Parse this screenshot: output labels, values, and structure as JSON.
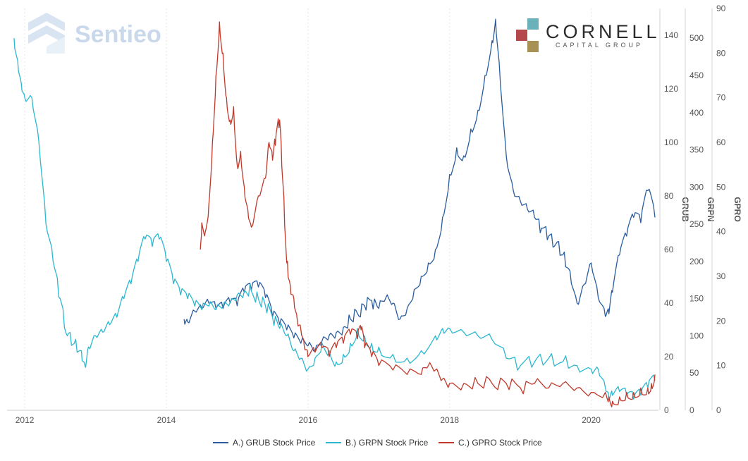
{
  "chart_data": {
    "type": "line",
    "watermark": "Sentieo",
    "brand": {
      "name": "CORNELL",
      "subtitle": "CAPITAL GROUP",
      "colors": [
        "#6ab1ba",
        "#b5484c",
        "#a89253"
      ]
    },
    "x_axis": {
      "range": [
        2011.75,
        2020.95
      ],
      "ticks": [
        "2012",
        "2014",
        "2016",
        "2018",
        "2020"
      ]
    },
    "axes": [
      {
        "id": "GRUB",
        "title": "GRUB",
        "range": [
          0,
          150
        ],
        "ticks": [
          "0",
          "20",
          "40",
          "60",
          "80",
          "100",
          "120",
          "140"
        ]
      },
      {
        "id": "GRPN",
        "title": "GRPN",
        "range": [
          0,
          540
        ],
        "ticks": [
          "0",
          "50",
          "100",
          "150",
          "200",
          "250",
          "300",
          "350",
          "400",
          "450",
          "500"
        ]
      },
      {
        "id": "GPRO",
        "title": "GPRO",
        "range": [
          0,
          90
        ],
        "ticks": [
          "0",
          "10",
          "20",
          "30",
          "40",
          "50",
          "60",
          "70",
          "80",
          "90"
        ]
      }
    ],
    "series": [
      {
        "name": "A.) GRUB Stock Price",
        "axis": "GRUB",
        "color": "#2a5d9f",
        "x": [
          2014.25,
          2014.3,
          2014.4,
          2014.5,
          2014.6,
          2014.7,
          2014.8,
          2014.9,
          2015.0,
          2015.1,
          2015.2,
          2015.3,
          2015.4,
          2015.5,
          2015.6,
          2015.7,
          2015.8,
          2015.9,
          2016.0,
          2016.1,
          2016.2,
          2016.3,
          2016.4,
          2016.5,
          2016.6,
          2016.7,
          2016.8,
          2016.9,
          2017.0,
          2017.1,
          2017.2,
          2017.3,
          2017.4,
          2017.5,
          2017.6,
          2017.7,
          2017.8,
          2017.9,
          2018.0,
          2018.1,
          2018.2,
          2018.3,
          2018.4,
          2018.5,
          2018.6,
          2018.65,
          2018.7,
          2018.8,
          2018.9,
          2019.0,
          2019.1,
          2019.2,
          2019.3,
          2019.4,
          2019.5,
          2019.6,
          2019.7,
          2019.8,
          2019.9,
          2020.0,
          2020.1,
          2020.2,
          2020.25,
          2020.3,
          2020.4,
          2020.5,
          2020.6,
          2020.7,
          2020.8,
          2020.9
        ],
        "values": [
          34,
          33,
          37,
          38,
          40,
          38,
          38,
          40,
          39,
          44,
          45,
          46,
          42,
          35,
          32,
          30,
          27,
          25,
          24,
          22,
          26,
          28,
          29,
          31,
          34,
          36,
          39,
          41,
          38,
          42,
          40,
          34,
          38,
          45,
          50,
          55,
          60,
          72,
          88,
          98,
          95,
          105,
          112,
          125,
          138,
          146,
          130,
          95,
          82,
          78,
          75,
          72,
          68,
          65,
          62,
          58,
          52,
          40,
          47,
          55,
          42,
          35,
          36,
          44,
          58,
          65,
          72,
          70,
          82,
          72
        ]
      },
      {
        "name": "B.) GRPN Stock Price",
        "axis": "GRPN",
        "color": "#2ab8cf",
        "x": [
          2011.85,
          2011.9,
          2011.95,
          2012.0,
          2012.1,
          2012.2,
          2012.3,
          2012.4,
          2012.5,
          2012.6,
          2012.7,
          2012.8,
          2012.85,
          2012.9,
          2013.0,
          2013.1,
          2013.2,
          2013.3,
          2013.4,
          2013.5,
          2013.6,
          2013.7,
          2013.8,
          2013.9,
          2014.0,
          2014.1,
          2014.2,
          2014.3,
          2014.4,
          2014.5,
          2014.6,
          2014.7,
          2014.8,
          2014.9,
          2015.0,
          2015.1,
          2015.2,
          2015.3,
          2015.4,
          2015.5,
          2015.6,
          2015.7,
          2015.8,
          2015.9,
          2016.0,
          2016.1,
          2016.2,
          2016.3,
          2016.4,
          2016.5,
          2016.6,
          2016.7,
          2016.8,
          2016.9,
          2017.0,
          2017.2,
          2017.4,
          2017.6,
          2017.8,
          2017.9,
          2018.0,
          2018.2,
          2018.4,
          2018.6,
          2018.8,
          2019.0,
          2019.2,
          2019.4,
          2019.6,
          2019.8,
          2020.0,
          2020.1,
          2020.2,
          2020.25,
          2020.3,
          2020.4,
          2020.5,
          2020.6,
          2020.7,
          2020.8,
          2020.9
        ],
        "values": [
          500,
          470,
          440,
          420,
          420,
          360,
          250,
          200,
          150,
          100,
          90,
          80,
          60,
          85,
          100,
          105,
          115,
          125,
          150,
          170,
          200,
          230,
          220,
          230,
          200,
          170,
          155,
          150,
          140,
          135,
          140,
          135,
          140,
          145,
          155,
          160,
          160,
          150,
          140,
          125,
          110,
          100,
          80,
          70,
          55,
          70,
          90,
          80,
          65,
          75,
          90,
          110,
          100,
          90,
          85,
          75,
          70,
          80,
          100,
          110,
          110,
          105,
          100,
          95,
          70,
          60,
          65,
          70,
          65,
          60,
          55,
          55,
          30,
          15,
          20,
          25,
          20,
          15,
          20,
          30,
          40
        ]
      },
      {
        "name": "C.) GPRO Stock Price",
        "axis": "GPRO",
        "color": "#c0392b",
        "x": [
          2014.48,
          2014.5,
          2014.55,
          2014.6,
          2014.65,
          2014.7,
          2014.75,
          2014.8,
          2014.85,
          2014.9,
          2014.95,
          2015.0,
          2015.05,
          2015.1,
          2015.15,
          2015.2,
          2015.3,
          2015.4,
          2015.45,
          2015.5,
          2015.55,
          2015.6,
          2015.65,
          2015.7,
          2015.75,
          2015.8,
          2015.85,
          2015.9,
          2015.95,
          2016.0,
          2016.1,
          2016.2,
          2016.3,
          2016.4,
          2016.5,
          2016.6,
          2016.7,
          2016.75,
          2016.8,
          2016.9,
          2017.0,
          2017.2,
          2017.4,
          2017.6,
          2017.7,
          2017.8,
          2017.9,
          2018.0,
          2018.2,
          2018.4,
          2018.6,
          2018.8,
          2019.0,
          2019.2,
          2019.4,
          2019.6,
          2019.8,
          2020.0,
          2020.2,
          2020.25,
          2020.3,
          2020.4,
          2020.5,
          2020.6,
          2020.7,
          2020.8,
          2020.85,
          2020.9
        ],
        "values": [
          36,
          42,
          40,
          46,
          60,
          75,
          87,
          80,
          70,
          65,
          68,
          55,
          58,
          50,
          45,
          41,
          48,
          52,
          60,
          56,
          62,
          65,
          50,
          33,
          28,
          25,
          20,
          18,
          14,
          12,
          13,
          14,
          12,
          14,
          15,
          17,
          16,
          18,
          14,
          12,
          10,
          9,
          8,
          8,
          10,
          9,
          7,
          6,
          6,
          6,
          6,
          6,
          5,
          6,
          5,
          6,
          5,
          4,
          4,
          3,
          2,
          3,
          4,
          4,
          5,
          5,
          6,
          8
        ]
      }
    ]
  }
}
